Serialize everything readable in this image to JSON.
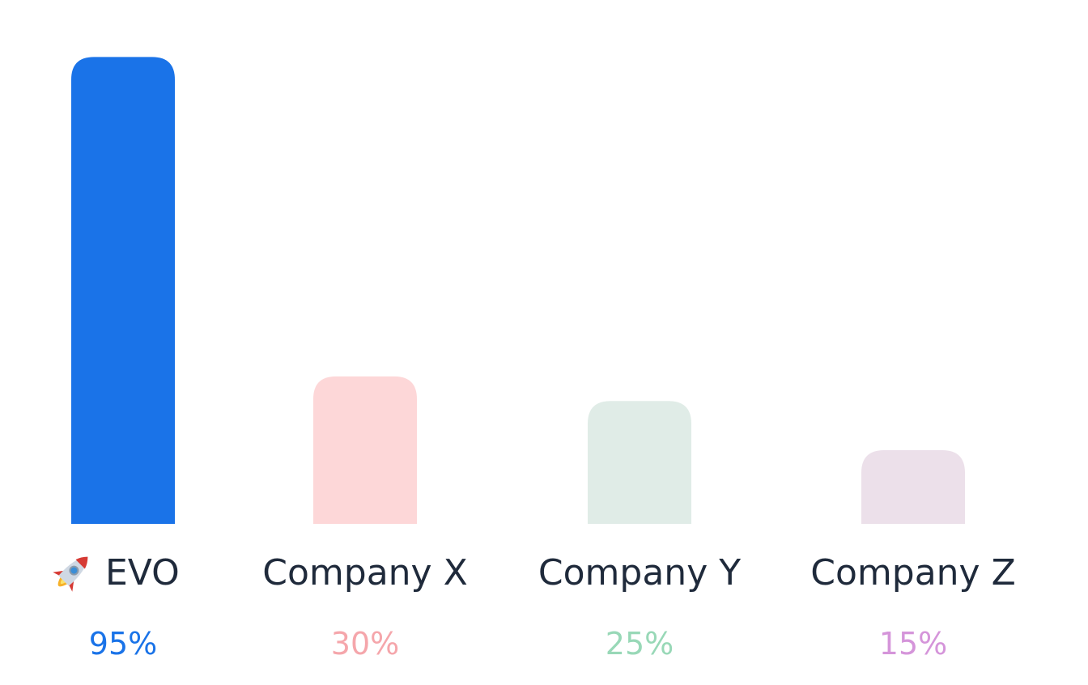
{
  "chart_data": {
    "type": "bar",
    "categories": [
      "EVO",
      "Company X",
      "Company Y",
      "Company Z"
    ],
    "values": [
      95,
      30,
      25,
      15
    ],
    "value_labels": [
      "95%",
      "30%",
      "25%",
      "15%"
    ],
    "ylim": [
      0,
      100
    ],
    "grid": false,
    "legend": "none",
    "title": "",
    "xlabel": "",
    "ylabel": "",
    "category_icons": [
      "rocket-icon",
      "",
      "",
      ""
    ],
    "colors": {
      "bars": [
        "#1a73e8",
        "#fdd7d8",
        "#e0ece7",
        "#ece0ea"
      ],
      "value_labels": [
        "#1a73e8",
        "#f5a6ab",
        "#98d8b7",
        "#d595da"
      ],
      "category_labels": "#1f2a3b"
    }
  }
}
